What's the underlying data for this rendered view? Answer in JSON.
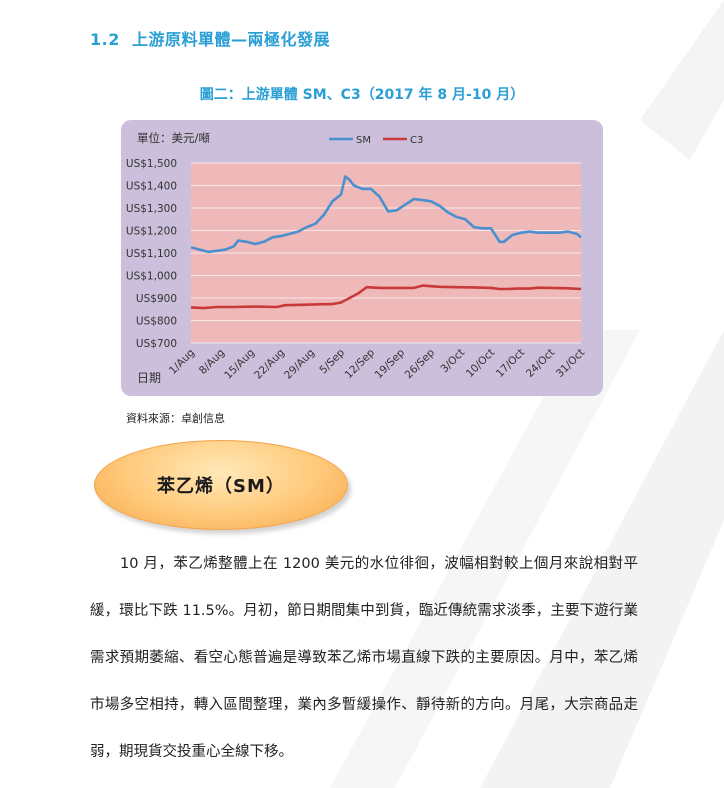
{
  "section": {
    "number": "1.2",
    "title": "上游原料單體—兩極化發展"
  },
  "figure": {
    "title": "圖二：上游單體 SM、C3（2017 年 8 月-10 月）"
  },
  "chart_data": {
    "type": "line",
    "unit_label": "單位：美元/噸",
    "xlabel": "日期",
    "ylabel": "",
    "ylim": [
      700,
      1500
    ],
    "y_ticks": [
      "US$1,500",
      "US$1,400",
      "US$1,300",
      "US$1,200",
      "US$1,100",
      "US$1,000",
      "US$900",
      "US$800",
      "US$700"
    ],
    "x_ticks": [
      "1/Aug",
      "8/Aug",
      "15/Aug",
      "22/Aug",
      "29/Aug",
      "5/Sep",
      "12/Sep",
      "19/Sep",
      "26/Sep",
      "3/Oct",
      "10/Oct",
      "17/Oct",
      "24/Oct",
      "31/Oct"
    ],
    "legend_position": "top-center",
    "grid": true,
    "colors": {
      "SM": "#4a8fd0",
      "C3": "#c8393a",
      "plot_bg": "#efb9b9",
      "panel_bg": "#cbbfdc"
    },
    "series": [
      {
        "name": "SM",
        "values": [
          [
            0,
            1125
          ],
          [
            2,
            1115
          ],
          [
            4,
            1105
          ],
          [
            6,
            1110
          ],
          [
            8,
            1115
          ],
          [
            10,
            1130
          ],
          [
            11,
            1155
          ],
          [
            13,
            1150
          ],
          [
            15,
            1140
          ],
          [
            17,
            1150
          ],
          [
            19,
            1170
          ],
          [
            21,
            1175
          ],
          [
            23,
            1185
          ],
          [
            25,
            1195
          ],
          [
            27,
            1215
          ],
          [
            29,
            1230
          ],
          [
            31,
            1270
          ],
          [
            33,
            1330
          ],
          [
            35,
            1360
          ],
          [
            36,
            1440
          ],
          [
            37,
            1425
          ],
          [
            38,
            1400
          ],
          [
            40,
            1385
          ],
          [
            42,
            1385
          ],
          [
            44,
            1350
          ],
          [
            46,
            1285
          ],
          [
            48,
            1290
          ],
          [
            50,
            1315
          ],
          [
            52,
            1340
          ],
          [
            54,
            1335
          ],
          [
            56,
            1330
          ],
          [
            58,
            1310
          ],
          [
            60,
            1280
          ],
          [
            62,
            1260
          ],
          [
            64,
            1250
          ],
          [
            66,
            1215
          ],
          [
            68,
            1210
          ],
          [
            70,
            1210
          ],
          [
            71,
            1180
          ],
          [
            72,
            1150
          ],
          [
            73,
            1150
          ],
          [
            75,
            1180
          ],
          [
            77,
            1190
          ],
          [
            79,
            1195
          ],
          [
            81,
            1190
          ],
          [
            83,
            1190
          ],
          [
            86,
            1190
          ],
          [
            88,
            1195
          ],
          [
            90,
            1185
          ],
          [
            91,
            1170
          ]
        ]
      },
      {
        "name": "C3",
        "values": [
          [
            0,
            858
          ],
          [
            3,
            855
          ],
          [
            6,
            860
          ],
          [
            10,
            860
          ],
          [
            15,
            862
          ],
          [
            20,
            860
          ],
          [
            22,
            868
          ],
          [
            26,
            870
          ],
          [
            30,
            872
          ],
          [
            33,
            873
          ],
          [
            35,
            880
          ],
          [
            37,
            900
          ],
          [
            39,
            920
          ],
          [
            41,
            948
          ],
          [
            44,
            945
          ],
          [
            48,
            945
          ],
          [
            52,
            945
          ],
          [
            54,
            955
          ],
          [
            58,
            950
          ],
          [
            62,
            948
          ],
          [
            66,
            947
          ],
          [
            70,
            945
          ],
          [
            72,
            940
          ],
          [
            74,
            940
          ],
          [
            76,
            942
          ],
          [
            79,
            942
          ],
          [
            81,
            946
          ],
          [
            84,
            945
          ],
          [
            88,
            943
          ],
          [
            91,
            940
          ]
        ]
      }
    ]
  },
  "source": "資料來源：卓創信息",
  "callout": {
    "label": "苯乙烯（SM）"
  },
  "paragraph": "10 月，苯乙烯整體上在 1200 美元的水位徘徊，波幅相對較上個月來說相對平緩，環比下跌 11.5%。月初，節日期間集中到貨，臨近傳統需求淡季，主要下遊行業需求預期萎縮、看空心態普遍是導致苯乙烯市場直線下跌的主要原因。月中，苯乙烯市場多空相持，轉入區間整理，業內多暫緩操作、靜待新的方向。月尾，大宗商品走弱，期現貨交投重心全線下移。"
}
